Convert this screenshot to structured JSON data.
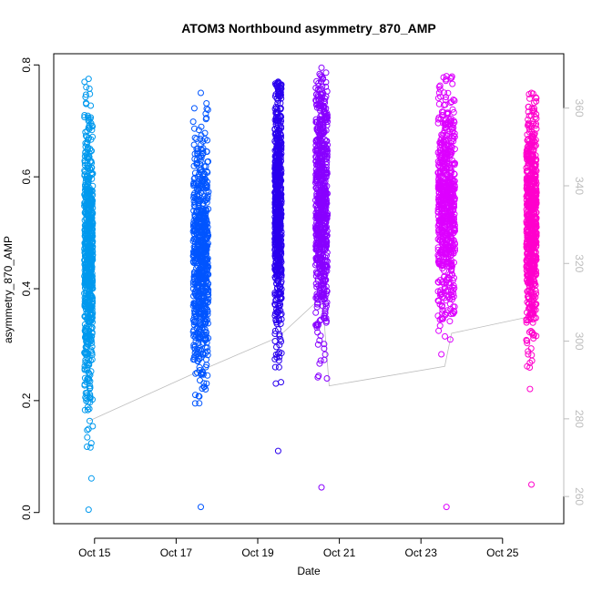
{
  "chart_data": {
    "type": "scatter",
    "title": "ATOM3 Northbound asymmetry_870_AMP",
    "xlabel": "Date",
    "ylabel": "asymmetry_870_AMP",
    "xlim": [
      "2016-10-14T00:00",
      "2016-10-26T12:00"
    ],
    "ylim": [
      -0.02,
      0.82
    ],
    "y2lim": [
      253,
      374
    ],
    "x_ticks": [
      {
        "date": "2016-10-15",
        "label": "Oct 15"
      },
      {
        "date": "2016-10-17",
        "label": "Oct 17"
      },
      {
        "date": "2016-10-19",
        "label": "Oct 19"
      },
      {
        "date": "2016-10-21",
        "label": "Oct 21"
      },
      {
        "date": "2016-10-23",
        "label": "Oct 23"
      },
      {
        "date": "2016-10-25",
        "label": "Oct 25"
      }
    ],
    "y_ticks": [
      "0.0",
      "0.2",
      "0.4",
      "0.6",
      "0.8"
    ],
    "y2_ticks": [
      "260",
      "280",
      "300",
      "320",
      "340",
      "360"
    ],
    "grid": false,
    "legend": "none",
    "series": [
      {
        "color": "#0099ee",
        "x_start": "2016-10-14T18:00",
        "x_end": "2016-10-14T23:00",
        "y_min": 0.005,
        "y_max": 0.775,
        "y_center": 0.45,
        "y_spread": 0.18
      },
      {
        "color": "#0055ff",
        "x_start": "2016-10-17T10:00",
        "x_end": "2016-10-17T19:00",
        "y_min": 0.01,
        "y_max": 0.75,
        "y_center": 0.45,
        "y_spread": 0.15
      },
      {
        "color": "#2a00ee",
        "x_start": "2016-10-19T10:00",
        "x_end": "2016-10-19T14:00",
        "y_min": 0.11,
        "y_max": 0.77,
        "y_center": 0.55,
        "y_spread": 0.16
      },
      {
        "color": "#8800ff",
        "x_start": "2016-10-20T10:00",
        "x_end": "2016-10-20T17:00",
        "y_min": 0.045,
        "y_max": 0.795,
        "y_center": 0.55,
        "y_spread": 0.17
      },
      {
        "color": "#dd00ff",
        "x_start": "2016-10-23T10:00",
        "x_end": "2016-10-23T20:00",
        "y_min": 0.01,
        "y_max": 0.78,
        "y_center": 0.55,
        "y_spread": 0.14
      },
      {
        "color": "#ff00cc",
        "x_start": "2016-10-25T14:00",
        "x_end": "2016-10-25T20:00",
        "y_min": 0.05,
        "y_max": 0.75,
        "y_center": 0.52,
        "y_spread": 0.14
      }
    ],
    "secondary_line": {
      "color": "#bdbdbd",
      "points": [
        [
          "2016-10-14T21:00",
          279.5
        ],
        [
          "2016-10-17T12:00",
          292.0
        ],
        [
          "2016-10-19T12:00",
          301.0
        ],
        [
          "2016-10-20T14:00",
          311.5
        ],
        [
          "2016-10-20T18:00",
          288.5
        ],
        [
          "2016-10-23T14:00",
          293.5
        ],
        [
          "2016-10-23T18:00",
          302.0
        ],
        [
          "2016-10-25T18:00",
          306.5
        ]
      ]
    }
  }
}
